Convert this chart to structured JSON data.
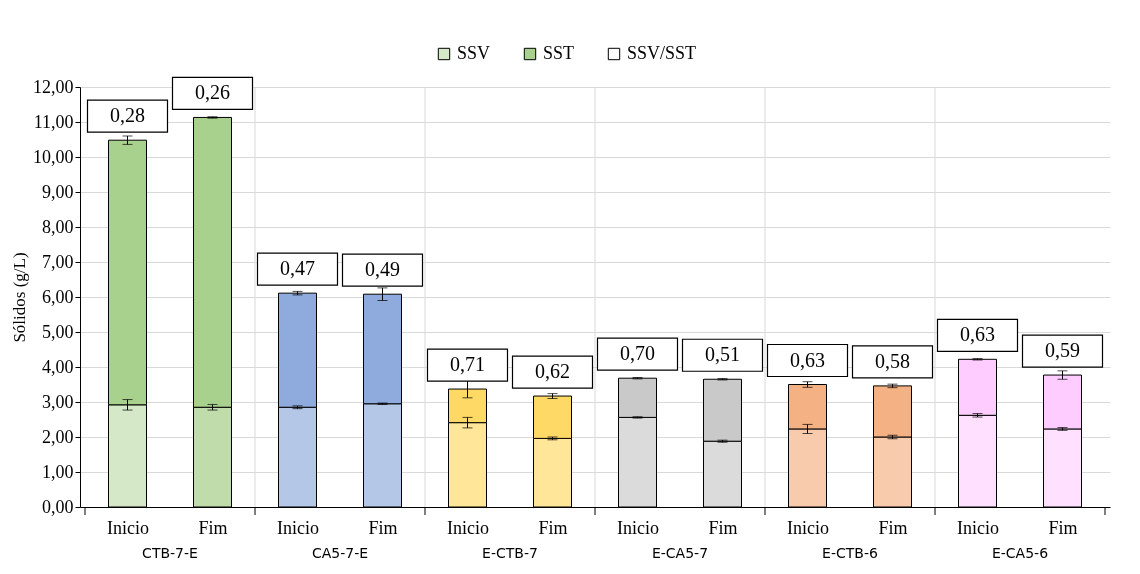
{
  "chart_data": {
    "type": "bar",
    "stacked": true,
    "ylabel": "Sólidos  (g/L)",
    "categories": [
      "Inicio",
      "Fim",
      "Inicio",
      "Fim",
      "Inicio",
      "Fim",
      "Inicio",
      "Fim",
      "Inicio",
      "Fim",
      "Inicio",
      "Fim"
    ],
    "series": [
      {
        "name": "SSV",
        "colors": [
          "#d5e8c7",
          "#c0dcab",
          "#b4c7e7",
          "#b4c7e7",
          "#ffe699",
          "#ffe699",
          "#dbdbdb",
          "#dbdbdb",
          "#f8cbad",
          "#f8cbad",
          "#ffe0ff",
          "#ffe0ff"
        ],
        "values": [
          2.92,
          2.85,
          2.85,
          2.95,
          2.41,
          1.96,
          2.56,
          1.88,
          2.23,
          2.0,
          2.62,
          2.23
        ],
        "errors": [
          0.15,
          0.08,
          0.04,
          0.02,
          0.15,
          0.04,
          0.02,
          0.03,
          0.13,
          0.05,
          0.05,
          0.04
        ]
      },
      {
        "name": "SST",
        "colors": [
          "#a9d18e",
          "#a9d18e",
          "#8faadc",
          "#8faadc",
          "#ffd966",
          "#ffd966",
          "#c9c9c9",
          "#c9c9c9",
          "#f4b183",
          "#f4b183",
          "#ffccff",
          "#ffccff"
        ],
        "values": [
          7.56,
          8.28,
          3.26,
          3.13,
          0.96,
          1.21,
          1.12,
          1.77,
          1.27,
          1.46,
          1.6,
          1.54
        ],
        "errors": [
          0.12,
          0.02,
          0.05,
          0.18,
          0.25,
          0.07,
          0.02,
          0.02,
          0.08,
          0.05,
          0.02,
          0.12
        ]
      }
    ],
    "annotations": [
      "SSV/SST",
      "CTB-7-E",
      "CA5-7-E",
      "E-CTB-7",
      "E-CA5-7",
      "E-CTB-6",
      "E-CA5-6",
      "0,28",
      "0,26",
      "0,47",
      "0,49",
      "0,71",
      "0,62",
      "0,70",
      "0,51",
      "0,63",
      "0,58",
      "0,63",
      "0,59"
    ],
    "ylim": [
      0,
      12
    ],
    "yticks": [
      {
        "value": 0,
        "label": "0,00"
      },
      {
        "value": 1,
        "label": "1,00"
      },
      {
        "value": 2,
        "label": "2,00"
      },
      {
        "value": 3,
        "label": "3,00"
      },
      {
        "value": 4,
        "label": "4,00"
      },
      {
        "value": 5,
        "label": "5,00"
      },
      {
        "value": 6,
        "label": "6,00"
      },
      {
        "value": 7,
        "label": "7,00"
      },
      {
        "value": 8,
        "label": "8,00"
      },
      {
        "value": 9,
        "label": "9,00"
      },
      {
        "value": 10,
        "label": "10,00"
      },
      {
        "value": 11,
        "label": "11,00"
      },
      {
        "value": 12,
        "label": "12,00"
      }
    ],
    "grid": true,
    "legend": "top"
  }
}
